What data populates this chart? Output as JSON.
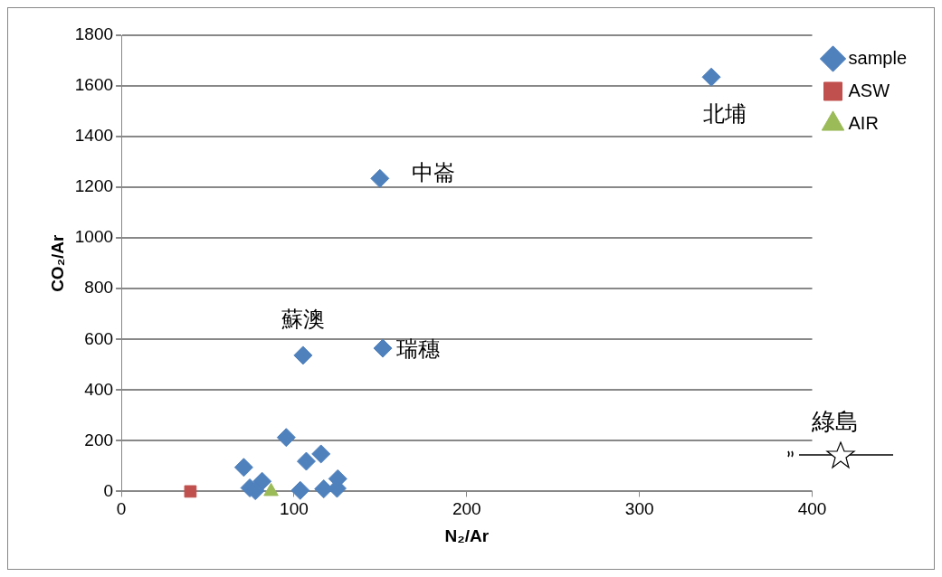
{
  "chart_data": {
    "type": "scatter",
    "xlabel": "N₂/Ar",
    "ylabel": "CO₂/Ar",
    "series": [
      {
        "name": "sample",
        "color": "#4f81bd",
        "marker": "diamond",
        "x": [
          341.6,
          149.7,
          151.4,
          105.2,
          95.5,
          70.9,
          107.1,
          115.6,
          74.4,
          81.5,
          77.6,
          103.6,
          117.2,
          125.3,
          124.9
        ],
        "values": [
          1635,
          1235,
          565,
          537,
          213,
          95,
          119,
          148,
          14,
          40,
          3,
          4,
          10,
          50,
          12
        ]
      },
      {
        "name": "ASW",
        "color": "#c0504d",
        "marker": "square",
        "x": [
          40
        ],
        "values": [
          0
        ]
      },
      {
        "name": "AIR",
        "color": "#9bbb59",
        "marker": "triangle",
        "x": [
          86.7
        ],
        "values": [
          0
        ]
      }
    ],
    "annotations": [
      {
        "text": "北埔",
        "x": 341.6,
        "y": 1635
      },
      {
        "text": "中崙",
        "x": 149.7,
        "y": 1235
      },
      {
        "text": "瑞穗",
        "x": 151.4,
        "y": 565
      },
      {
        "text": "蘇澳",
        "x": 105.2,
        "y": 537
      },
      "綠島"
    ],
    "xlim": [
      0,
      400
    ],
    "xticks": [
      0,
      100,
      200,
      300,
      400
    ],
    "ylim": [
      0,
      1800
    ],
    "yticks": [
      0,
      200,
      400,
      600,
      800,
      1000,
      1200,
      1400,
      1600,
      1800
    ],
    "grid": "y",
    "legend": "right"
  }
}
